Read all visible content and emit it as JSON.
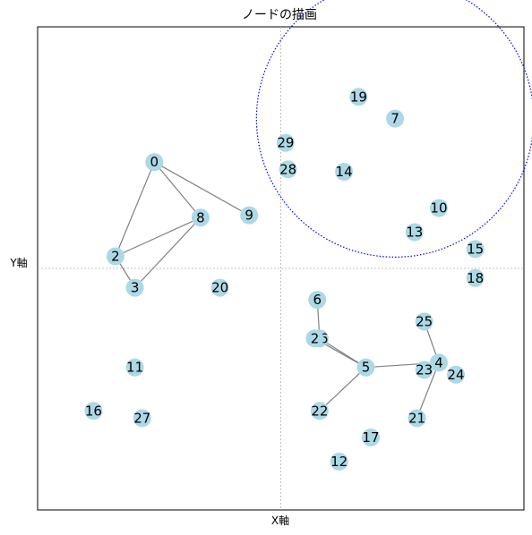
{
  "chart_data": {
    "type": "scatter",
    "title": "ノードの描画",
    "xlabel": "X軸",
    "ylabel": "Y軸",
    "xlim": [
      -1,
      1
    ],
    "ylim": [
      -1,
      1
    ],
    "grid": false,
    "crosshair": {
      "x": 0,
      "y": 0
    },
    "node_color": "#add8e6",
    "edge_color": "#808080",
    "circle_color": "#0000ff",
    "nodes": [
      {
        "id": "0",
        "x": -0.52,
        "y": 0.44
      },
      {
        "id": "2",
        "x": -0.68,
        "y": 0.05
      },
      {
        "id": "3",
        "x": -0.6,
        "y": -0.08
      },
      {
        "id": "8",
        "x": -0.33,
        "y": 0.21
      },
      {
        "id": "9",
        "x": -0.13,
        "y": 0.22
      },
      {
        "id": "20",
        "x": -0.25,
        "y": -0.08
      },
      {
        "id": "11",
        "x": -0.6,
        "y": -0.41
      },
      {
        "id": "16",
        "x": -0.77,
        "y": -0.59
      },
      {
        "id": "27",
        "x": -0.57,
        "y": -0.62
      },
      {
        "id": "29",
        "x": 0.02,
        "y": 0.52
      },
      {
        "id": "28",
        "x": 0.03,
        "y": 0.41
      },
      {
        "id": "14",
        "x": 0.26,
        "y": 0.4
      },
      {
        "id": "19",
        "x": 0.32,
        "y": 0.71
      },
      {
        "id": "7",
        "x": 0.47,
        "y": 0.62
      },
      {
        "id": "10",
        "x": 0.65,
        "y": 0.25
      },
      {
        "id": "13",
        "x": 0.55,
        "y": 0.15
      },
      {
        "id": "15",
        "x": 0.8,
        "y": 0.08
      },
      {
        "id": "18",
        "x": 0.8,
        "y": -0.04
      },
      {
        "id": "6",
        "x": 0.15,
        "y": -0.13
      },
      {
        "id": "26",
        "x": 0.16,
        "y": -0.29
      },
      {
        "id": "2b",
        "label": "2",
        "x": 0.14,
        "y": -0.29
      },
      {
        "id": "5",
        "x": 0.35,
        "y": -0.41
      },
      {
        "id": "25",
        "x": 0.59,
        "y": -0.22
      },
      {
        "id": "4",
        "x": 0.65,
        "y": -0.39
      },
      {
        "id": "23",
        "x": 0.59,
        "y": -0.42
      },
      {
        "id": "24",
        "x": 0.72,
        "y": -0.44
      },
      {
        "id": "22",
        "x": 0.16,
        "y": -0.59
      },
      {
        "id": "17",
        "x": 0.37,
        "y": -0.7
      },
      {
        "id": "21",
        "x": 0.56,
        "y": -0.62
      },
      {
        "id": "12",
        "x": 0.24,
        "y": -0.8
      }
    ],
    "edges": [
      [
        "0",
        "2"
      ],
      [
        "0",
        "8"
      ],
      [
        "0",
        "9"
      ],
      [
        "2",
        "8"
      ],
      [
        "2",
        "3"
      ],
      [
        "3",
        "8"
      ],
      [
        "6",
        "26"
      ],
      [
        "26",
        "5"
      ],
      [
        "2b",
        "5"
      ],
      [
        "5",
        "22"
      ],
      [
        "5",
        "4"
      ],
      [
        "4",
        "25"
      ],
      [
        "4",
        "21"
      ]
    ],
    "circle": {
      "cx": 0.47,
      "cy": 0.62,
      "r": 0.57
    }
  }
}
